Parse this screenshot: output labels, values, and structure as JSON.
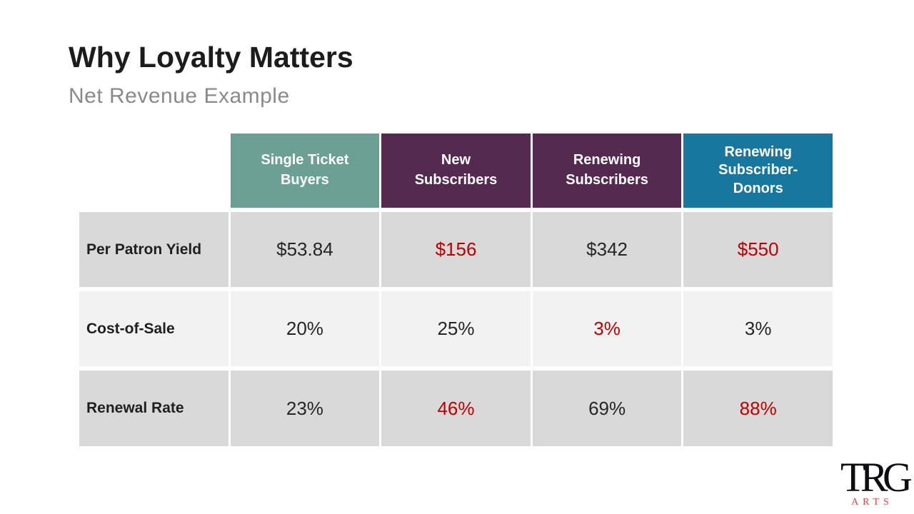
{
  "slide": {
    "title": "Why Loyalty Matters",
    "subtitle": "Net Revenue Example"
  },
  "table": {
    "columns": [
      {
        "label": "Single Ticket Buyers",
        "lines": [
          "Single Ticket",
          "Buyers"
        ],
        "bg": "#6CA094"
      },
      {
        "label": "New Subscribers",
        "lines": [
          "New",
          "Subscribers"
        ],
        "bg": "#552A50"
      },
      {
        "label": "Renewing Subscribers",
        "lines": [
          "Renewing",
          "Subscribers"
        ],
        "bg": "#552A50"
      },
      {
        "label": "Renewing Subscriber-Donors",
        "lines": [
          "Renewing",
          "Subscriber-",
          "Donors"
        ],
        "bg": "#17779E"
      }
    ],
    "rows": [
      {
        "label": "Per Patron Yield",
        "values": [
          "$53.84",
          "$156",
          "$342",
          "$550"
        ],
        "highlighted": [
          false,
          true,
          false,
          true
        ]
      },
      {
        "label": "Cost-of-Sale",
        "values": [
          "20%",
          "25%",
          "3%",
          "3%"
        ],
        "highlighted": [
          false,
          false,
          true,
          false
        ]
      },
      {
        "label": "Renewal Rate",
        "values": [
          "23%",
          "46%",
          "69%",
          "88%"
        ],
        "highlighted": [
          false,
          true,
          false,
          true
        ]
      }
    ]
  },
  "colors": {
    "teal_header": "#6CA094",
    "purple_header": "#552A50",
    "blue_header": "#17779E",
    "row_dark_bg": "#D9D9D9",
    "row_light_bg": "#F2F2F2",
    "highlight_red": "#C00000",
    "subtitle_gray": "#8A8A8A"
  },
  "logo": {
    "mark": "TRG",
    "word": "ARTS"
  }
}
